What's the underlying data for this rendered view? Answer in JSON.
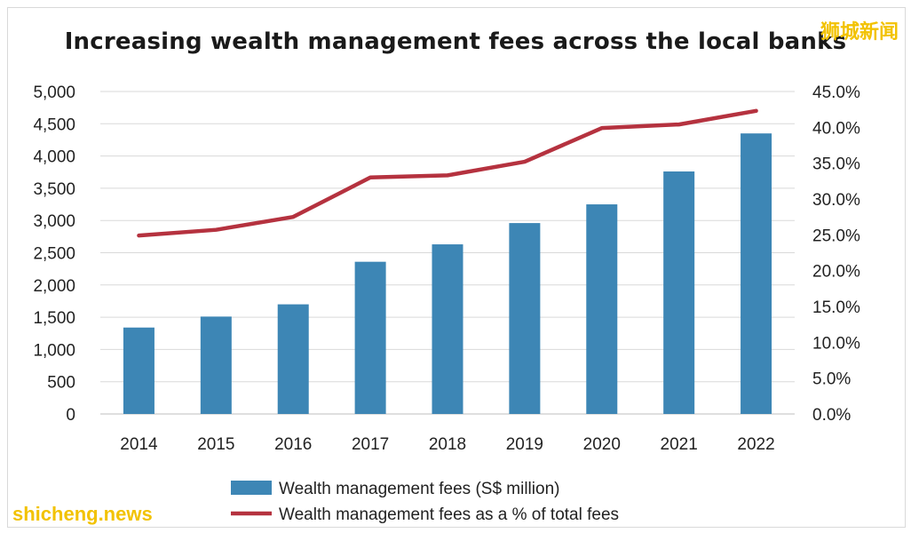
{
  "page": {
    "title": "Increasing wealth management fees across the local banks",
    "watermark_top": "狮城新闻",
    "watermark_bottom": "shicheng.news"
  },
  "chart_data": {
    "type": "bar",
    "title": "Increasing wealth management fees across the local banks",
    "categories": [
      "2014",
      "2015",
      "2016",
      "2017",
      "2018",
      "2019",
      "2020",
      "2021",
      "2022"
    ],
    "y_left": {
      "ylim": [
        0,
        5000
      ],
      "ticks": [
        "0",
        "500",
        "1,000",
        "1,500",
        "2,000",
        "2,500",
        "3,000",
        "3,500",
        "4,000",
        "4,500",
        "5,000"
      ],
      "ticks_values": [
        0,
        500,
        1000,
        1500,
        2000,
        2500,
        3000,
        3500,
        4000,
        4500,
        5000
      ]
    },
    "y_right": {
      "ylim": [
        0,
        45
      ],
      "ticks": [
        "0.0%",
        "5.0%",
        "10.0%",
        "15.0%",
        "20.0%",
        "25.0%",
        "30.0%",
        "35.0%",
        "40.0%",
        "45.0%"
      ],
      "ticks_values": [
        0,
        5,
        10,
        15,
        20,
        25,
        30,
        35,
        40,
        45
      ]
    },
    "series": [
      {
        "name": "Wealth management fees (S$ million)",
        "type": "bar",
        "axis": "left",
        "color": "#3d86b5",
        "values": [
          1340,
          1510,
          1700,
          2360,
          2630,
          2960,
          3250,
          3760,
          4350
        ]
      },
      {
        "name": "Wealth management fees as a % of total fees",
        "type": "line",
        "axis": "right",
        "color": "#b5323f",
        "values": [
          24.9,
          25.7,
          27.5,
          33.0,
          33.3,
          35.2,
          39.9,
          40.4,
          42.3
        ]
      }
    ],
    "grid": true,
    "legend_position": "bottom"
  }
}
